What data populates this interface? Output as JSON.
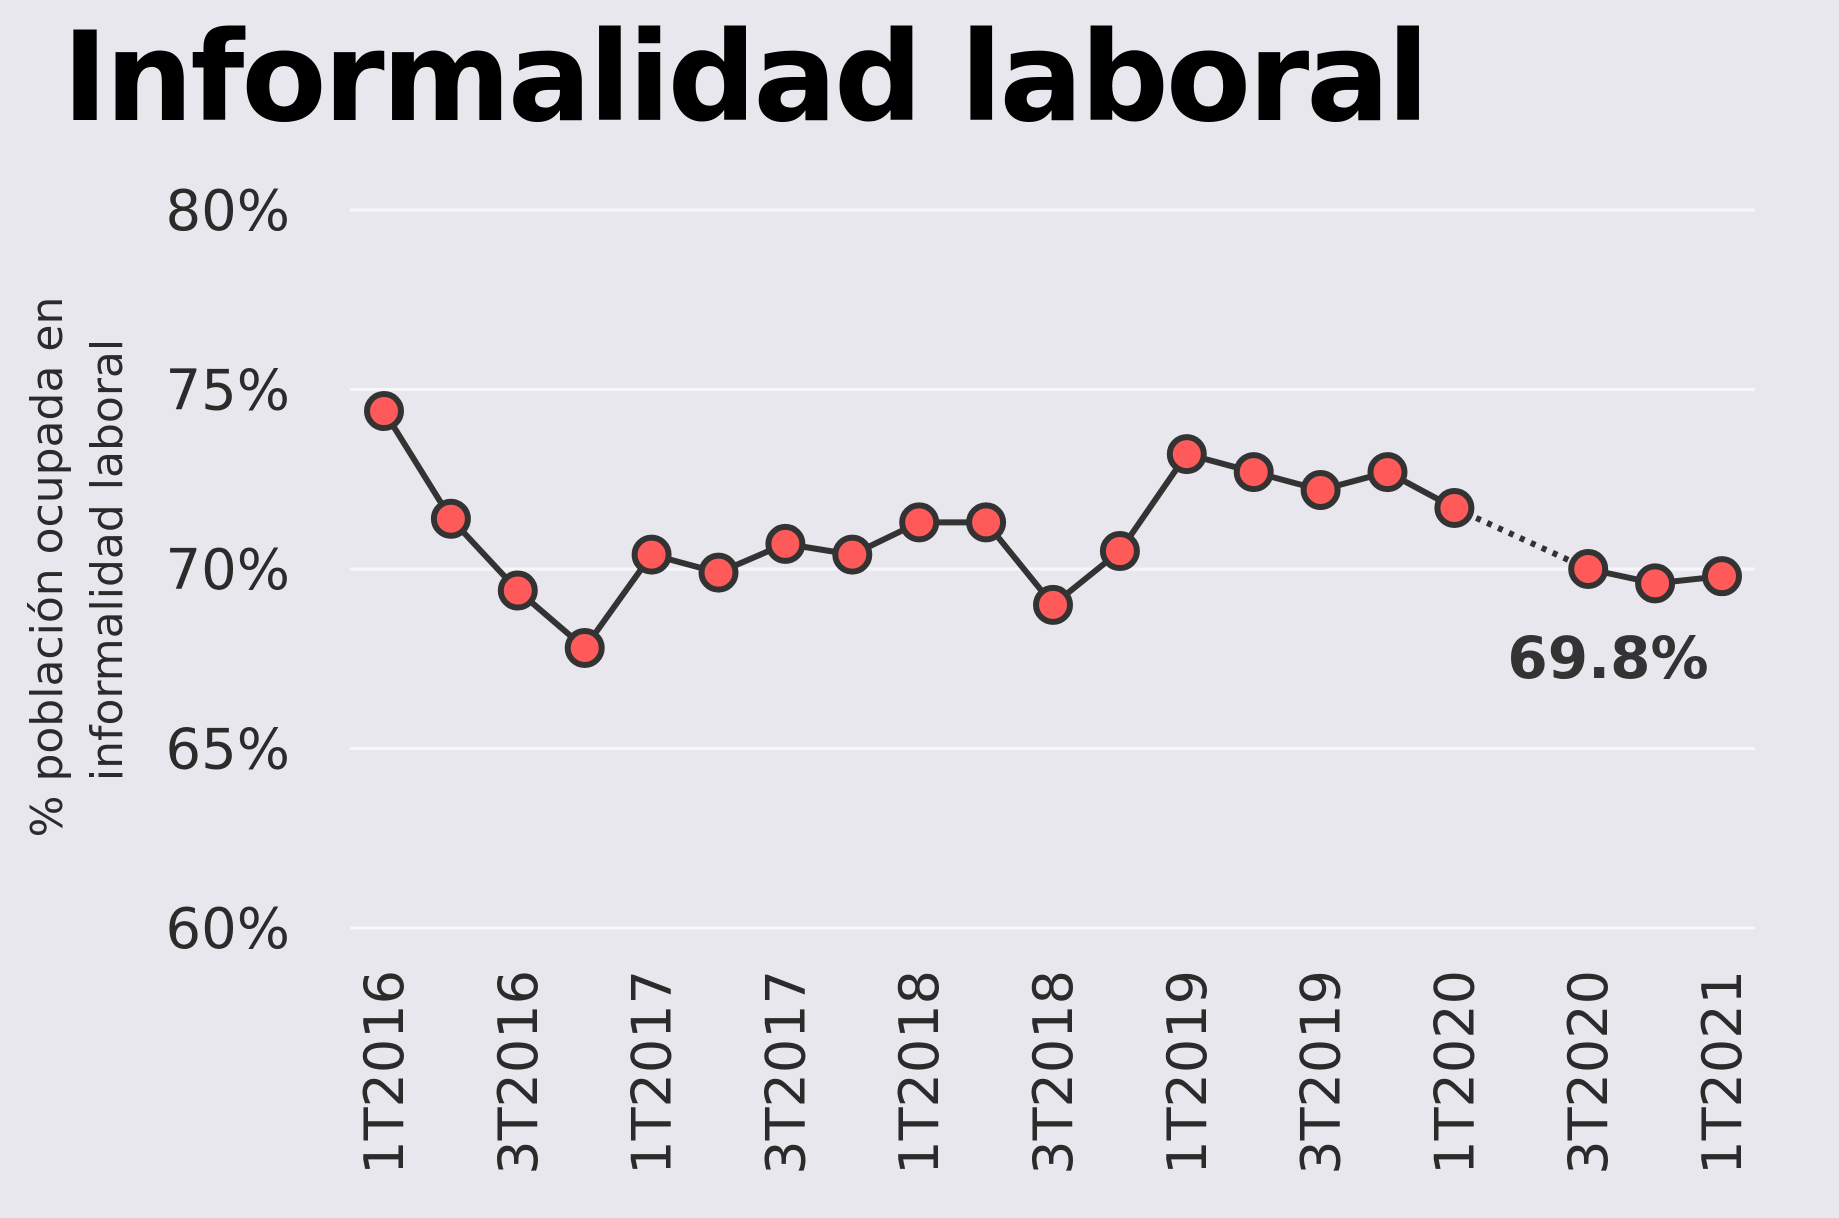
{
  "chart_data": {
    "type": "line",
    "title": "Informalidad laboral",
    "ylabel_lines": [
      "% población ocupada en",
      "informalidad laboral"
    ],
    "xlabel": "",
    "y_ticks": [
      60,
      65,
      70,
      75,
      80
    ],
    "y_tick_labels": [
      "60%",
      "65%",
      "70%",
      "75%",
      "80%"
    ],
    "ylim": [
      60,
      80
    ],
    "grid": "horizontal",
    "categories": [
      "1T2016",
      "2T2016",
      "3T2016",
      "4T2016",
      "1T2017",
      "2T2017",
      "3T2017",
      "4T2017",
      "1T2018",
      "2T2018",
      "3T2018",
      "4T2018",
      "1T2019",
      "2T2019",
      "3T2019",
      "4T2019",
      "1T2020",
      "2T2020",
      "3T2020",
      "4T2020",
      "1T2021"
    ],
    "x_tick_labels": [
      "1T2016",
      "",
      "3T2016",
      "",
      "1T2017",
      "",
      "3T2017",
      "",
      "1T2018",
      "",
      "3T2018",
      "",
      "1T2019",
      "",
      "3T2019",
      "",
      "1T2020",
      "",
      "3T2020",
      "",
      "1T2021"
    ],
    "series": [
      {
        "values": [
          74.4,
          71.4,
          69.4,
          67.8,
          70.4,
          69.9,
          70.7,
          70.4,
          71.3,
          71.3,
          69.0,
          70.5,
          73.2,
          72.7,
          72.2,
          72.7,
          71.7,
          null,
          70.0,
          69.6,
          69.8
        ]
      }
    ],
    "gap_style": "dotted",
    "last_value_label": "69.8%",
    "colors": {
      "background": "#e8e7ee",
      "grid": "#f7f7fa",
      "line": "#333333",
      "marker_fill": "#ff5a5a",
      "marker_edge": "#333333"
    }
  }
}
